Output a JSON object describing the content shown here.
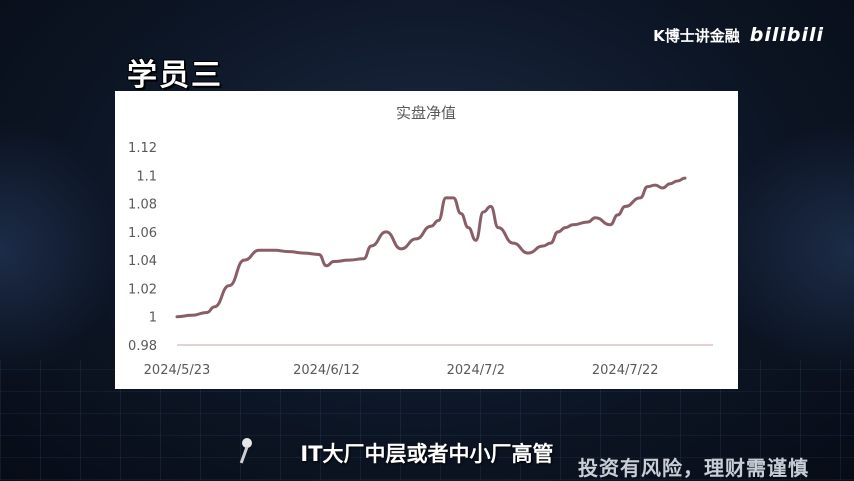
{
  "brand": {
    "name": "K博士讲金融",
    "logo_text": "bilibili"
  },
  "slide": {
    "title": "学员三"
  },
  "subtitle": "IT大厂中层或者中小厂高管",
  "disclaimer": "投资有风险，理财需谨慎",
  "colors": {
    "line": "#8a5e66",
    "axis": "#c9a4a4",
    "text": "#595959"
  },
  "chart_data": {
    "type": "line",
    "title": "实盘净值",
    "xlabel": "",
    "ylabel": "",
    "ylim": [
      0.98,
      1.12
    ],
    "yticks": [
      "1.12",
      "1.1",
      "1.08",
      "1.06",
      "1.04",
      "1.02",
      "1",
      "0.98"
    ],
    "xticks": [
      "2024/5/23",
      "2024/6/12",
      "2024/7/2",
      "2024/7/22"
    ],
    "grid": false,
    "series": [
      {
        "name": "",
        "x": [
          "2024-05-23",
          "2024-05-25",
          "2024-05-27",
          "2024-05-28",
          "2024-05-30",
          "2024-06-01",
          "2024-06-03",
          "2024-06-05",
          "2024-06-07",
          "2024-06-09",
          "2024-06-11",
          "2024-06-12",
          "2024-06-13",
          "2024-06-15",
          "2024-06-17",
          "2024-06-18",
          "2024-06-20",
          "2024-06-22",
          "2024-06-24",
          "2024-06-26",
          "2024-06-27",
          "2024-06-28",
          "2024-06-29",
          "2024-06-30",
          "2024-07-01",
          "2024-07-02",
          "2024-07-03",
          "2024-07-04",
          "2024-07-05",
          "2024-07-07",
          "2024-07-09",
          "2024-07-11",
          "2024-07-12",
          "2024-07-13",
          "2024-07-14",
          "2024-07-15",
          "2024-07-17",
          "2024-07-18",
          "2024-07-20",
          "2024-07-21",
          "2024-07-22",
          "2024-07-24",
          "2024-07-25",
          "2024-07-26",
          "2024-07-27",
          "2024-07-28",
          "2024-07-29",
          "2024-07-30"
        ],
        "values": [
          1.0,
          1.001,
          1.003,
          1.007,
          1.022,
          1.04,
          1.047,
          1.047,
          1.046,
          1.045,
          1.044,
          1.036,
          1.039,
          1.04,
          1.041,
          1.05,
          1.06,
          1.048,
          1.055,
          1.064,
          1.068,
          1.084,
          1.084,
          1.073,
          1.063,
          1.054,
          1.074,
          1.078,
          1.063,
          1.052,
          1.045,
          1.05,
          1.052,
          1.06,
          1.063,
          1.065,
          1.067,
          1.07,
          1.065,
          1.072,
          1.078,
          1.084,
          1.092,
          1.093,
          1.091,
          1.094,
          1.096,
          1.098
        ]
      }
    ]
  }
}
